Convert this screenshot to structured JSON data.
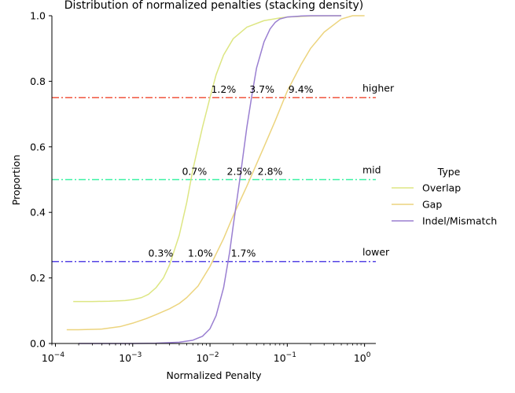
{
  "chart_data": {
    "type": "line",
    "title": "Distribution of normalized penalties (stacking density)",
    "xlabel": "Normalized Penalty",
    "ylabel": "Proportion",
    "xscale": "log",
    "xlim": [
      9e-05,
      1.4
    ],
    "ylim": [
      0.0,
      1.0
    ],
    "xticks": [
      0.0001,
      0.001,
      0.01,
      0.1,
      1
    ],
    "xtick_labels": [
      {
        "base": "10",
        "exp": "−4"
      },
      {
        "base": "10",
        "exp": "−3"
      },
      {
        "base": "10",
        "exp": "−2"
      },
      {
        "base": "10",
        "exp": "−1"
      },
      {
        "base": "10",
        "exp": "0"
      }
    ],
    "yticks": [
      0.0,
      0.2,
      0.4,
      0.6,
      0.8,
      1.0
    ],
    "ytick_labels": [
      "0.0",
      "0.2",
      "0.4",
      "0.6",
      "0.8",
      "1.0"
    ],
    "grid": false,
    "legend": {
      "title": "Type",
      "placement": "right",
      "entries": [
        "Overlap",
        "Gap",
        "Indel/Mismatch"
      ]
    },
    "series": [
      {
        "name": "Overlap",
        "color": "#dde683",
        "x": [
          0.00017,
          0.0003,
          0.0005,
          0.0008,
          0.001,
          0.0013,
          0.0016,
          0.002,
          0.0025,
          0.003,
          0.004,
          0.005,
          0.006,
          0.007,
          0.008,
          0.01,
          0.012,
          0.015,
          0.02,
          0.03,
          0.05,
          0.08,
          0.1,
          0.2,
          0.5
        ],
        "y": [
          0.128,
          0.128,
          0.129,
          0.131,
          0.134,
          0.14,
          0.15,
          0.17,
          0.2,
          0.24,
          0.33,
          0.43,
          0.53,
          0.6,
          0.66,
          0.75,
          0.82,
          0.88,
          0.93,
          0.965,
          0.985,
          0.993,
          0.996,
          0.999,
          1.0
        ]
      },
      {
        "name": "Gap",
        "color": "#ecd47e",
        "x": [
          0.00014,
          0.0002,
          0.0004,
          0.0007,
          0.001,
          0.0015,
          0.002,
          0.003,
          0.004,
          0.005,
          0.007,
          0.01,
          0.015,
          0.02,
          0.03,
          0.05,
          0.07,
          0.1,
          0.15,
          0.2,
          0.3,
          0.5,
          0.7,
          1.0
        ],
        "y": [
          0.042,
          0.042,
          0.044,
          0.052,
          0.062,
          0.076,
          0.088,
          0.106,
          0.122,
          0.14,
          0.175,
          0.235,
          0.32,
          0.39,
          0.48,
          0.6,
          0.68,
          0.77,
          0.85,
          0.9,
          0.95,
          0.99,
          1.0,
          1.0
        ]
      },
      {
        "name": "Indel/Mismatch",
        "color": "#9a7fd1",
        "x": [
          0.0002,
          0.0005,
          0.001,
          0.002,
          0.004,
          0.006,
          0.008,
          0.01,
          0.012,
          0.015,
          0.018,
          0.02,
          0.025,
          0.03,
          0.035,
          0.04,
          0.05,
          0.06,
          0.07,
          0.08,
          0.1,
          0.15,
          0.2,
          0.3,
          0.5
        ],
        "y": [
          0.0,
          0.0,
          0.0,
          0.001,
          0.004,
          0.01,
          0.022,
          0.045,
          0.085,
          0.17,
          0.28,
          0.36,
          0.52,
          0.66,
          0.76,
          0.84,
          0.92,
          0.96,
          0.98,
          0.99,
          0.996,
          0.999,
          1.0,
          1.0,
          1.0
        ]
      }
    ],
    "reference_lines": [
      {
        "y": 0.75,
        "label": "higher",
        "color": "#f0553e"
      },
      {
        "y": 0.5,
        "label": "mid",
        "color": "#3cf2a4"
      },
      {
        "y": 0.25,
        "label": "lower",
        "color": "#5645e4"
      }
    ],
    "annotations": [
      {
        "x": 0.015,
        "y": 0.775,
        "text": "1.2%"
      },
      {
        "x": 0.047,
        "y": 0.775,
        "text": "3.7%"
      },
      {
        "x": 0.15,
        "y": 0.775,
        "text": "9.4%"
      },
      {
        "x": 0.0063,
        "y": 0.524,
        "text": "0.7%"
      },
      {
        "x": 0.024,
        "y": 0.524,
        "text": "2.5%"
      },
      {
        "x": 0.06,
        "y": 0.524,
        "text": "2.8%"
      },
      {
        "x": 0.0023,
        "y": 0.274,
        "text": "0.3%"
      },
      {
        "x": 0.0075,
        "y": 0.274,
        "text": "1.0%"
      },
      {
        "x": 0.027,
        "y": 0.274,
        "text": "1.7%"
      }
    ]
  }
}
